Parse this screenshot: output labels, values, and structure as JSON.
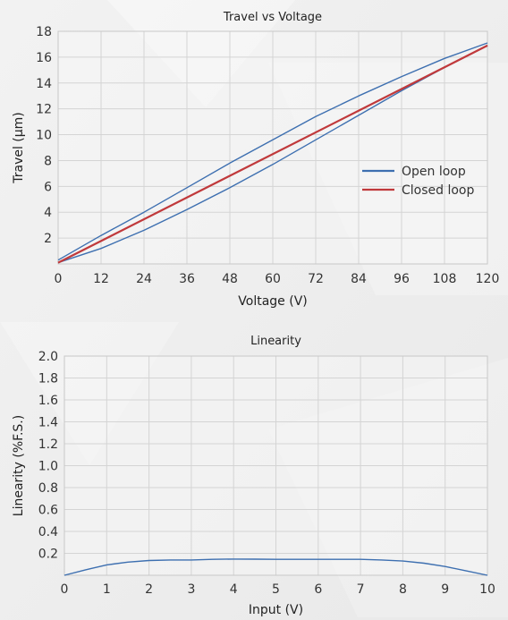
{
  "chart_data": [
    {
      "type": "line",
      "title": "Travel vs Voltage",
      "xlabel": "Voltage  (V)",
      "ylabel": "Travel  (µm)",
      "xlim": [
        0,
        120
      ],
      "ylim": [
        0,
        18
      ],
      "xticks": [
        0,
        12,
        24,
        36,
        48,
        60,
        72,
        84,
        96,
        108,
        120
      ],
      "yticks": [
        2,
        4,
        6,
        8,
        10,
        12,
        14,
        16,
        18
      ],
      "grid": true,
      "legend": "right",
      "series": [
        {
          "name": "Open loop",
          "color": "#3d6fb0",
          "segments": [
            {
              "x": [
                0,
                12,
                24,
                36,
                48,
                60,
                72,
                84,
                96,
                108,
                120
              ],
              "y": [
                0.3,
                2.2,
                4.0,
                5.9,
                7.8,
                9.6,
                11.4,
                13.0,
                14.5,
                15.9,
                17.1
              ]
            },
            {
              "x": [
                0,
                12,
                24,
                36,
                48,
                60,
                72,
                84,
                96,
                108,
                120
              ],
              "y": [
                0.1,
                1.2,
                2.6,
                4.2,
                5.9,
                7.7,
                9.6,
                11.5,
                13.4,
                15.2,
                16.9
              ]
            }
          ]
        },
        {
          "name": "Closed loop",
          "color": "#c0393b",
          "segments": [
            {
              "x": [
                0,
                120
              ],
              "y": [
                0.1,
                16.9
              ]
            }
          ]
        }
      ]
    },
    {
      "type": "line",
      "title": "Linearity",
      "xlabel": "Input  (V)",
      "ylabel": "Linearity  (%F.S.)",
      "xlim": [
        0,
        10
      ],
      "ylim": [
        0,
        2.0
      ],
      "xticks": [
        0,
        1,
        2,
        3,
        4,
        5,
        6,
        7,
        8,
        9,
        10
      ],
      "yticks": [
        "0.2",
        "0.4",
        "0.6",
        "0.8",
        "1.0",
        "1.2",
        "1.4",
        "1.6",
        "1.8",
        "2.0"
      ],
      "grid": true,
      "series": [
        {
          "color": "#3d6fb0",
          "segments": [
            {
              "x": [
                0,
                0.5,
                1,
                1.5,
                2,
                2.5,
                3,
                3.5,
                4,
                4.5,
                5,
                5.5,
                6,
                6.5,
                7,
                7.5,
                8,
                8.5,
                9,
                9.5,
                10
              ],
              "y": [
                0.0,
                0.05,
                0.095,
                0.12,
                0.135,
                0.14,
                0.14,
                0.145,
                0.148,
                0.147,
                0.145,
                0.145,
                0.145,
                0.145,
                0.145,
                0.14,
                0.13,
                0.11,
                0.08,
                0.04,
                0.0
              ]
            }
          ]
        }
      ]
    }
  ]
}
